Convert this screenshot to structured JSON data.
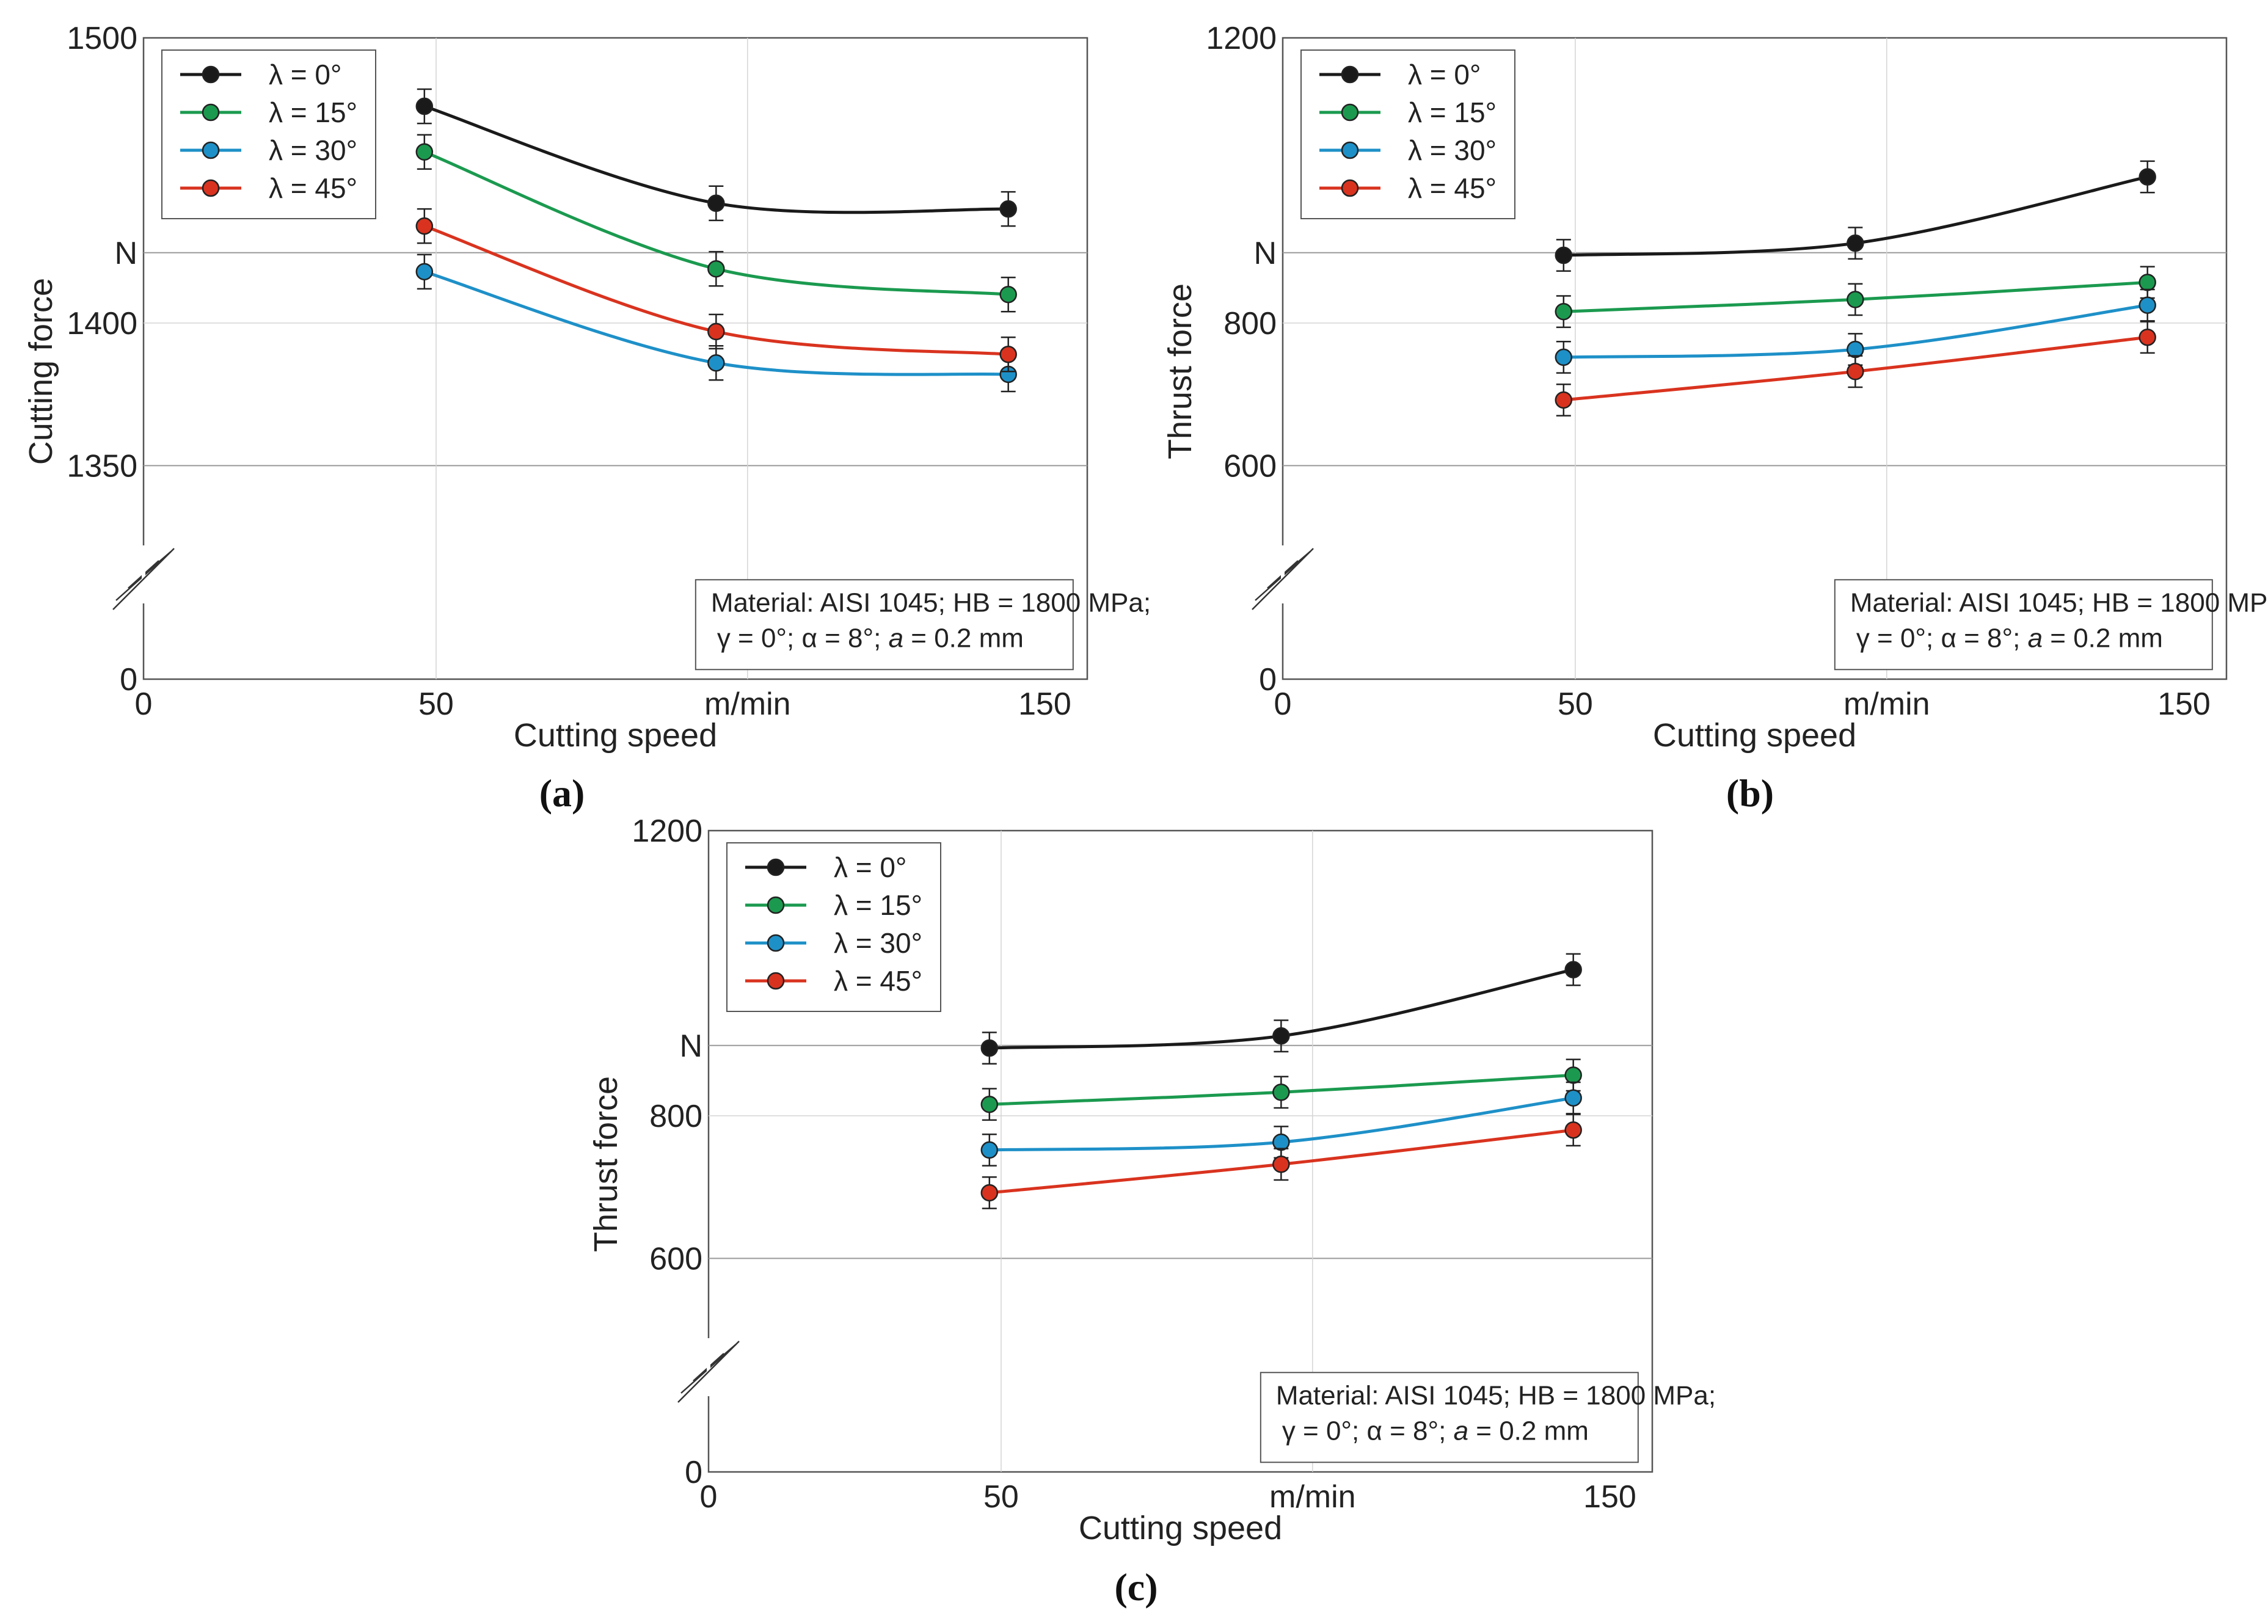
{
  "legend_labels": [
    "λ = 0°",
    "λ = 15°",
    "λ = 30°",
    "λ = 45°"
  ],
  "series_colors": [
    "#1a1a1a",
    "#1b9a4f",
    "#1e90c8",
    "#d9331f"
  ],
  "note": {
    "line1": "Material: AISI 1045; HB = 1800 MPa;",
    "line2_pre": "γ = 0°; α = 8°; ",
    "line2_italic": "a",
    "line2_post": " = 0.2 mm"
  },
  "chart_data": [
    {
      "type": "line",
      "panel": "a",
      "caption": "(a)",
      "xlabel": "Cutting speed",
      "x_unit_label": "m/min",
      "ylabel": "Cutting force",
      "y_unit_label": "N",
      "xlim": [
        0,
        150
      ],
      "x_ticks": [
        "0",
        "50",
        "150"
      ],
      "y_ticks": [
        "0",
        "1350",
        "1400",
        "1500"
      ],
      "y_axis_break": true,
      "ylim_upper": [
        1350,
        1500
      ],
      "x": [
        48,
        96,
        144
      ],
      "series": [
        {
          "name": "λ = 0°",
          "values": [
            1476,
            1442,
            1440
          ]
        },
        {
          "name": "λ = 15°",
          "values": [
            1460,
            1419,
            1410
          ]
        },
        {
          "name": "λ = 30°",
          "values": [
            1418,
            1386,
            1382
          ]
        },
        {
          "name": "λ = 45°",
          "values": [
            1434,
            1397,
            1389
          ]
        }
      ],
      "error": 6
    },
    {
      "type": "line",
      "panel": "b",
      "caption": "(b)",
      "xlabel": "Cutting speed",
      "x_unit_label": "m/min",
      "ylabel": "Thrust force",
      "y_unit_label": "N",
      "xlim": [
        0,
        150
      ],
      "x_ticks": [
        "0",
        "50",
        "150"
      ],
      "y_ticks": [
        "0",
        "600",
        "800",
        "1200"
      ],
      "y_axis_break": true,
      "ylim_upper": [
        600,
        1200
      ],
      "x": [
        48,
        96,
        144
      ],
      "series": [
        {
          "name": "λ = 0°",
          "values": [
            895,
            912,
            1005
          ]
        },
        {
          "name": "λ = 15°",
          "values": [
            816,
            833,
            857
          ]
        },
        {
          "name": "λ = 30°",
          "values": [
            752,
            763,
            825
          ]
        },
        {
          "name": "λ = 45°",
          "values": [
            692,
            732,
            780
          ]
        }
      ],
      "error": 22
    },
    {
      "type": "line",
      "panel": "c",
      "caption": "(c)",
      "xlabel": "Cutting speed",
      "x_unit_label": "m/min",
      "ylabel": "Thrust force",
      "y_unit_label": "N",
      "xlim": [
        0,
        150
      ],
      "x_ticks": [
        "0",
        "50",
        "150"
      ],
      "y_ticks": [
        "0",
        "600",
        "800",
        "1200"
      ],
      "y_axis_break": true,
      "ylim_upper": [
        600,
        1200
      ],
      "x": [
        48,
        96,
        144
      ],
      "series": [
        {
          "name": "λ = 0°",
          "values": [
            895,
            912,
            1005
          ]
        },
        {
          "name": "λ = 15°",
          "values": [
            816,
            833,
            857
          ]
        },
        {
          "name": "λ = 30°",
          "values": [
            752,
            763,
            825
          ]
        },
        {
          "name": "λ = 45°",
          "values": [
            692,
            732,
            780
          ]
        }
      ],
      "error": 22
    }
  ]
}
